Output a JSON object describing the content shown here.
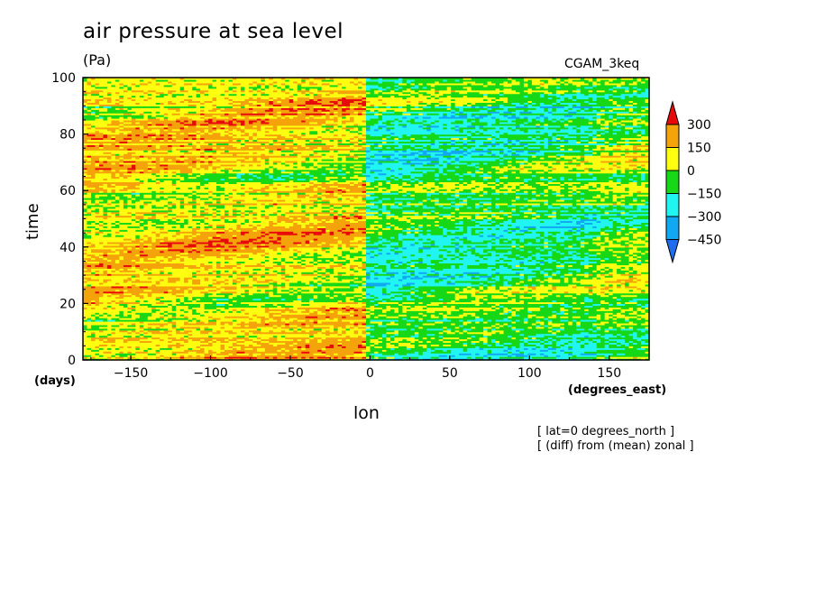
{
  "chart_data": {
    "type": "heatmap",
    "title": "air pressure at sea level",
    "units": "(Pa)",
    "model": "CGAM_3keq",
    "xlabel": "lon",
    "xunits": "(degrees_east)",
    "ylabel": "time",
    "yunits": "(days)",
    "xlim": [
      -180,
      175
    ],
    "ylim": [
      0,
      100
    ],
    "x_ticks": [
      -150,
      -100,
      -50,
      0,
      50,
      100,
      150
    ],
    "x_tick_labels": [
      "−150",
      "−100",
      "−50",
      "0",
      "50",
      "100",
      "150"
    ],
    "y_ticks": [
      0,
      20,
      40,
      60,
      80,
      100
    ],
    "y_tick_labels": [
      "0",
      "20",
      "40",
      "60",
      "80",
      "100"
    ],
    "notes": [
      "[ lat=0 degrees_north ]",
      "[ (diff) from (mean) zonal ]"
    ],
    "colorbar": {
      "levels": [
        -450,
        -300,
        -150,
        0,
        150,
        300
      ],
      "labels": [
        "−450",
        "−300",
        "−150",
        "0",
        "150",
        "300"
      ],
      "colors": [
        "#1e6cf0",
        "#10a8f2",
        "#21f5f2",
        "#16d816",
        "#ffff10",
        "#f5a30a",
        "#e80a0a"
      ],
      "extend": "both"
    },
    "pattern_summary": {
      "west_of_0": "mostly positive anomalies (yellow/orange, red streaks)",
      "east_of_0": "mostly negative anomalies (green/cyan/blue)"
    }
  }
}
